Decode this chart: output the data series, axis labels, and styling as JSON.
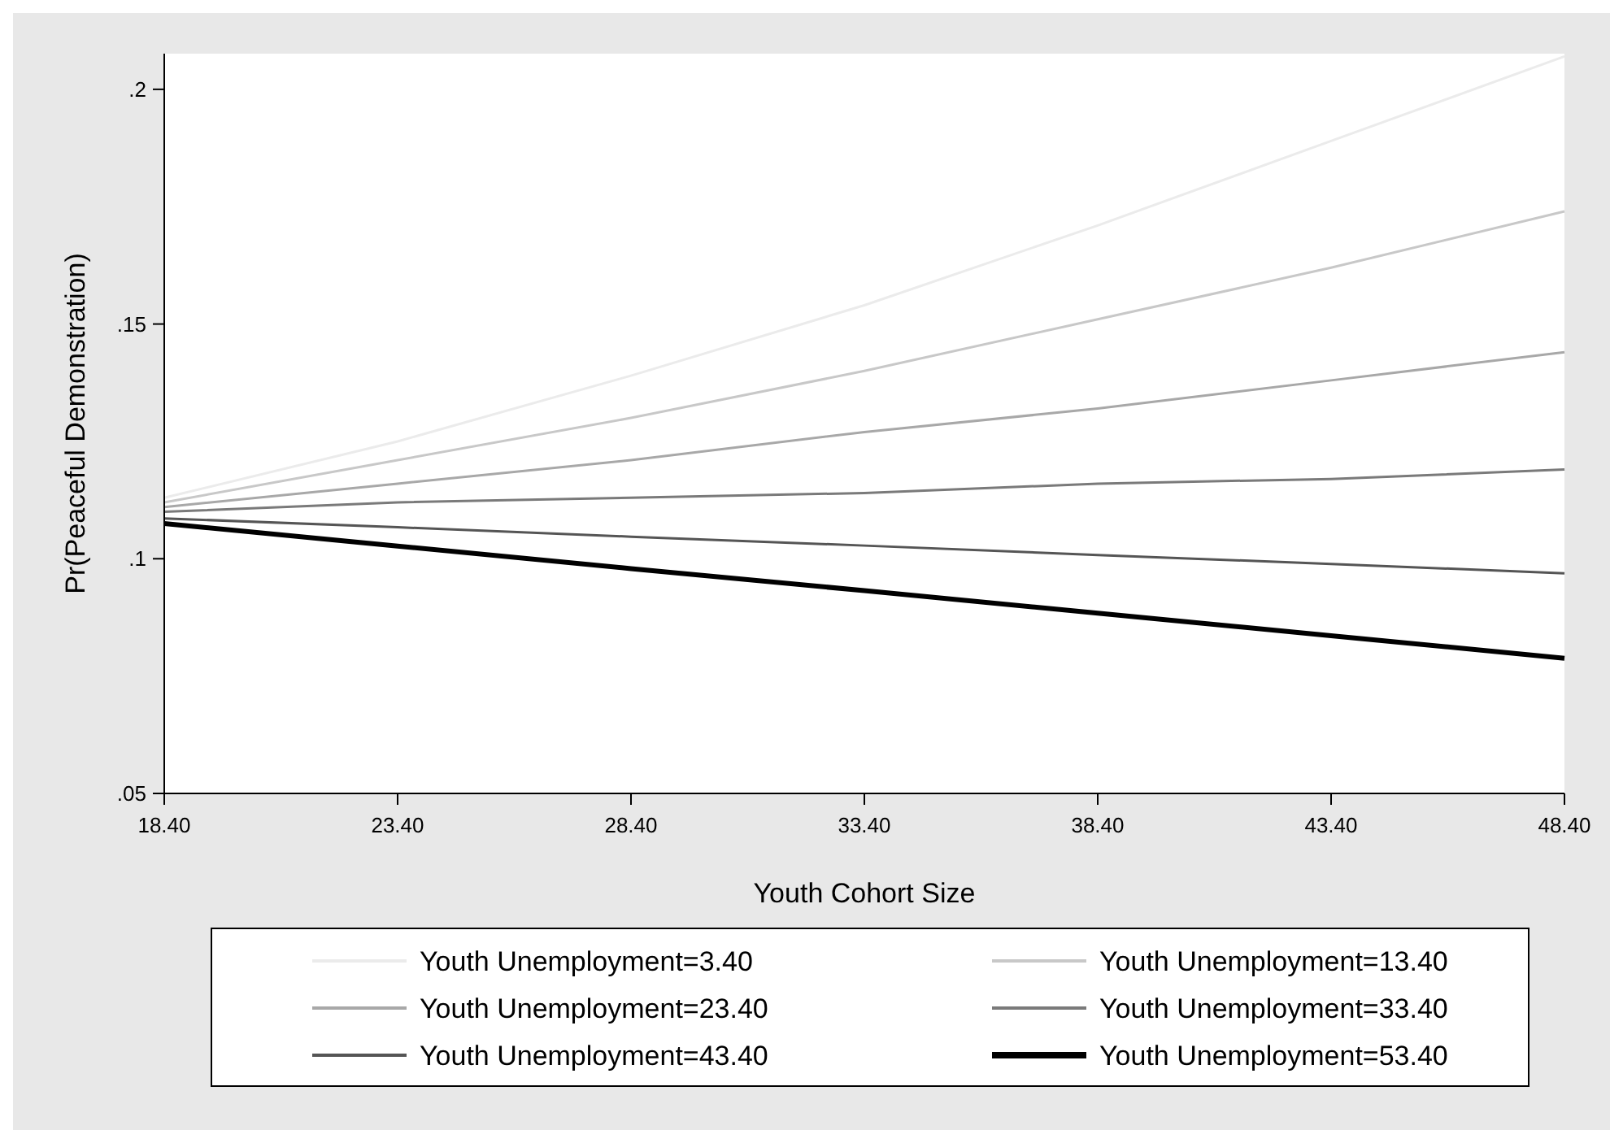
{
  "chart_data": {
    "type": "line",
    "xlabel": "Youth Cohort Size",
    "ylabel": "Pr(Peaceful Demonstration)",
    "x": [
      18.4,
      23.4,
      28.4,
      33.4,
      38.4,
      43.4,
      48.4
    ],
    "xlim": [
      18.4,
      48.4
    ],
    "ylim": [
      0.05,
      0.2076
    ],
    "xticks": [
      {
        "value": 18.4,
        "label": "18.40"
      },
      {
        "value": 23.4,
        "label": "23.40"
      },
      {
        "value": 28.4,
        "label": "28.40"
      },
      {
        "value": 33.4,
        "label": "33.40"
      },
      {
        "value": 38.4,
        "label": "38.40"
      },
      {
        "value": 43.4,
        "label": "43.40"
      },
      {
        "value": 48.4,
        "label": "48.40"
      }
    ],
    "yticks": [
      {
        "value": 0.05,
        "label": ".05"
      },
      {
        "value": 0.1,
        "label": ".1"
      },
      {
        "value": 0.15,
        "label": ".15"
      },
      {
        "value": 0.2,
        "label": ".2"
      }
    ],
    "series": [
      {
        "name": "Youth Unemployment=3.40",
        "color": "#ebebeb",
        "values": [
          0.113,
          0.125,
          0.139,
          0.154,
          0.171,
          0.189,
          0.207
        ]
      },
      {
        "name": "Youth Unemployment=13.40",
        "color": "#c8c8c8",
        "values": [
          0.112,
          0.121,
          0.13,
          0.14,
          0.151,
          0.162,
          0.174
        ]
      },
      {
        "name": "Youth Unemployment=23.40",
        "color": "#a8a8a8",
        "values": [
          0.111,
          0.116,
          0.121,
          0.127,
          0.132,
          0.138,
          0.144
        ]
      },
      {
        "name": "Youth Unemployment=33.40",
        "color": "#7a7a7a",
        "values": [
          0.11,
          0.112,
          0.113,
          0.114,
          0.116,
          0.117,
          0.119
        ]
      },
      {
        "name": "Youth Unemployment=43.40",
        "color": "#555555",
        "values": [
          0.1086,
          0.1067,
          0.1047,
          0.1028,
          0.1008,
          0.0989,
          0.0969
        ]
      },
      {
        "name": "Youth Unemployment=53.40",
        "color": "#000000",
        "values": [
          0.1075,
          0.1027,
          0.0979,
          0.0932,
          0.0884,
          0.0836,
          0.0788
        ]
      }
    ],
    "legend": "bottom",
    "marker": "none",
    "line_style": "solid"
  }
}
